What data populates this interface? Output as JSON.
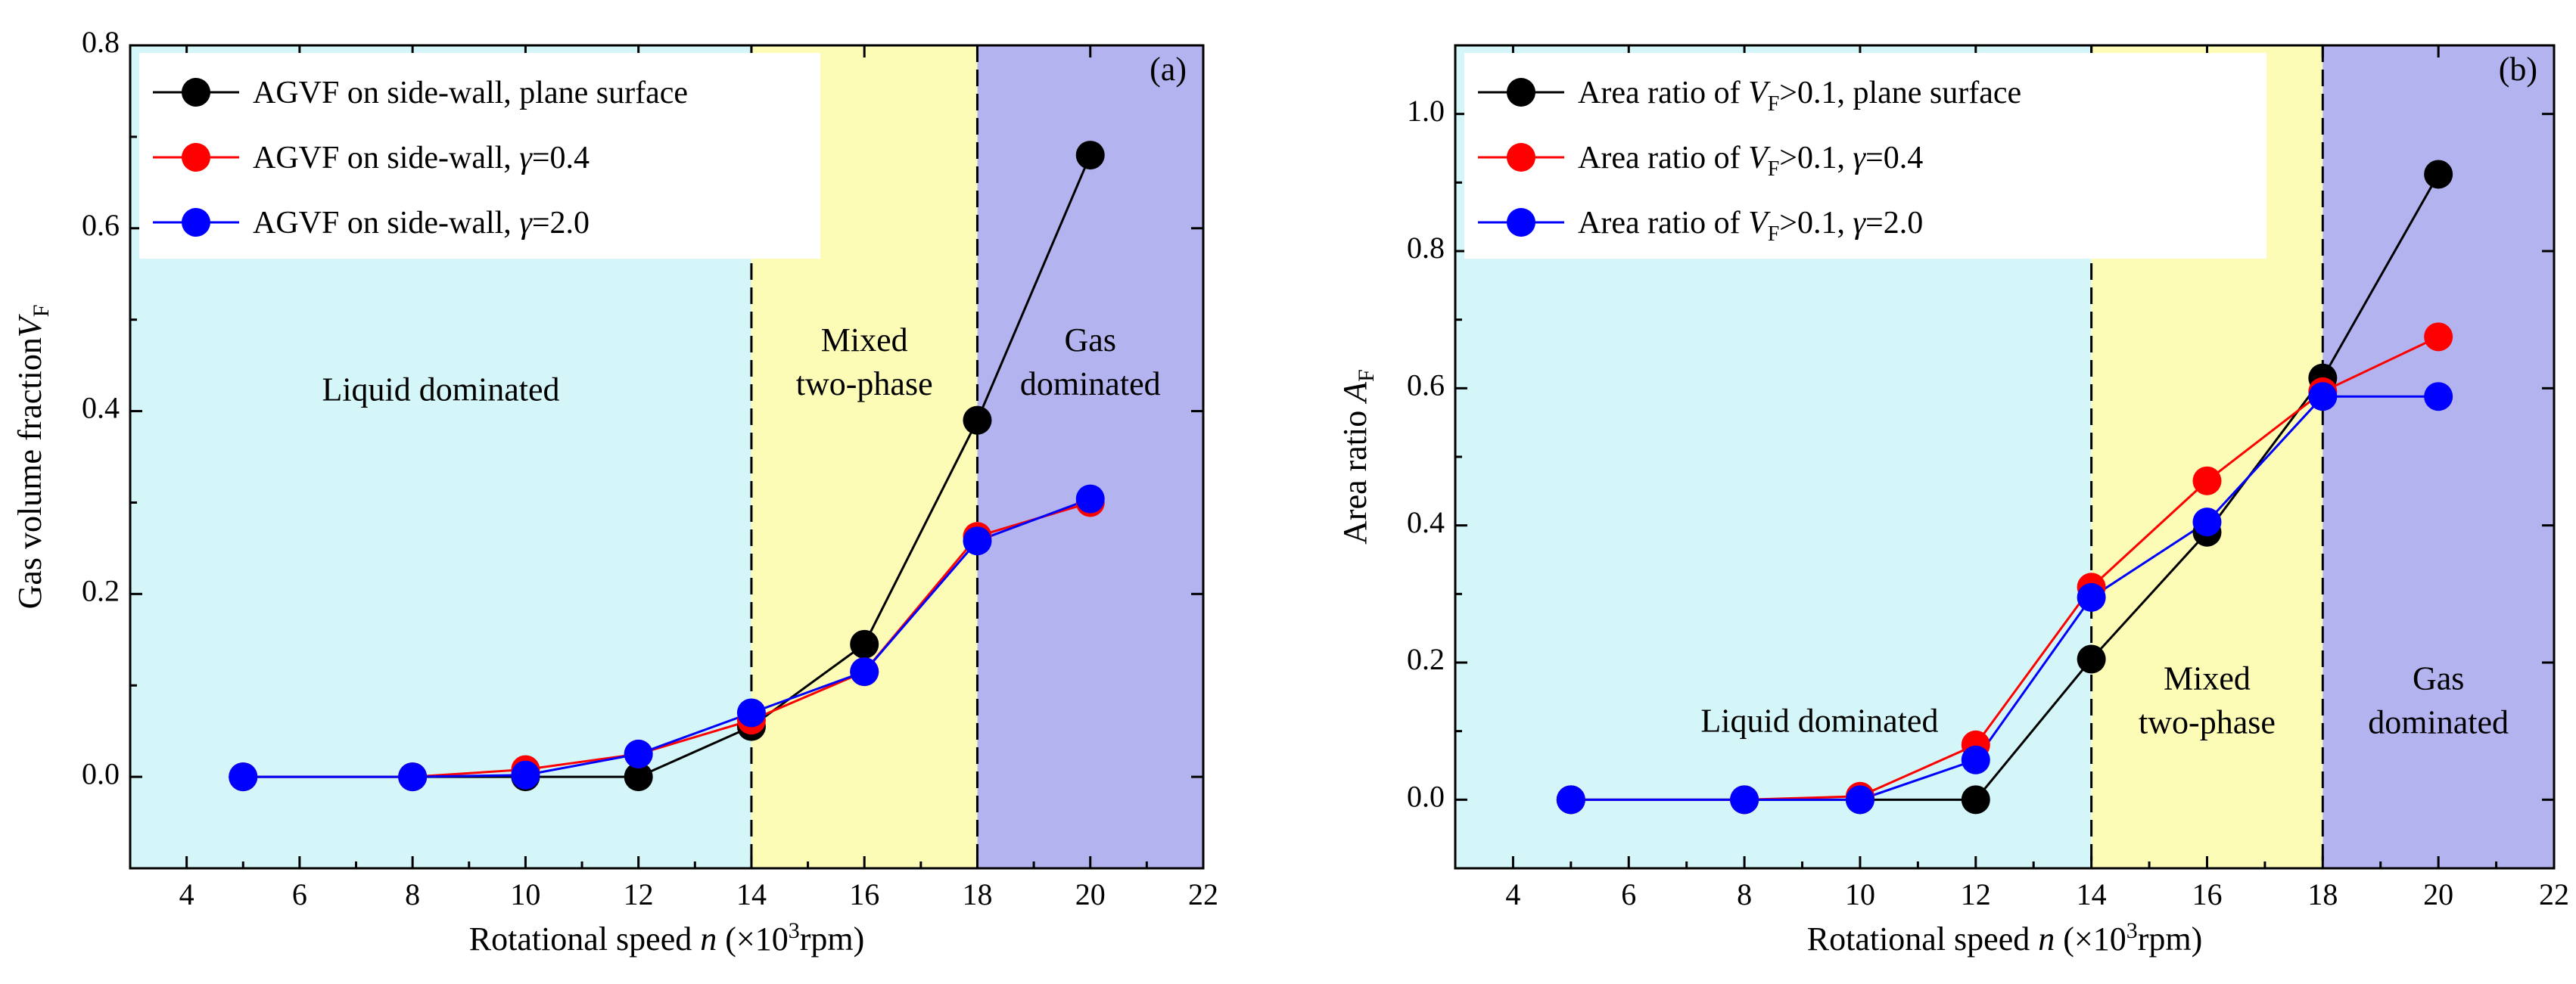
{
  "chart_data": [
    {
      "type": "line",
      "panel": "(a)",
      "xlabel": "Rotational speed",
      "xlabel_var": "n",
      "xlabel_unit_pre": " (×10",
      "xlabel_unit_sup": "3",
      "xlabel_unit_post": "rpm)",
      "ylabel": "Gas volume fraction",
      "ylabel_var": "V",
      "ylabel_sub": "F",
      "xlim": [
        3,
        22
      ],
      "ylim": [
        -0.1,
        0.8
      ],
      "xticks": [
        4,
        6,
        8,
        10,
        12,
        14,
        16,
        18,
        20,
        22
      ],
      "yticks": [
        0.0,
        0.2,
        0.4,
        0.6,
        0.8
      ],
      "ytick_labels": [
        "0.0",
        "0.2",
        "0.4",
        "0.6",
        "0.8"
      ],
      "regions": [
        {
          "from": 3,
          "to": 14,
          "color": "#d4f6f8",
          "label": [
            "Liquid dominated"
          ],
          "label_x": 8.5,
          "label_y": 0.42
        },
        {
          "from": 14,
          "to": 18,
          "color": "#fcfcb6",
          "label": [
            "Mixed",
            "two-phase"
          ],
          "label_x": 16.0,
          "label_y": 0.45
        },
        {
          "from": 18,
          "to": 22,
          "color": "#b3b3ef",
          "label": [
            "Gas",
            "dominated"
          ],
          "label_x": 20.0,
          "label_y": 0.45
        }
      ],
      "dividers": [
        14,
        18
      ],
      "legend_position": "top-left",
      "series": [
        {
          "name": "AGVF on side-wall, plane surface",
          "parts": [
            {
              "t": "AGVF on side-wall, plane surface"
            }
          ],
          "color": "#000000",
          "x": [
            5,
            8,
            10,
            12,
            14,
            16,
            18,
            20
          ],
          "values": [
            0.0,
            0.0,
            0.0,
            0.0,
            0.055,
            0.145,
            0.39,
            0.68
          ]
        },
        {
          "name": "AGVF on side-wall, γ=0.4",
          "parts": [
            {
              "t": "AGVF on side-wall, "
            },
            {
              "t": "γ",
              "i": true
            },
            {
              "t": "=0.4"
            }
          ],
          "color": "#ff0000",
          "x": [
            5,
            8,
            10,
            12,
            14,
            16,
            18,
            20
          ],
          "values": [
            0.0,
            0.0,
            0.008,
            0.025,
            0.062,
            0.115,
            0.263,
            0.3
          ]
        },
        {
          "name": "AGVF on side-wall, γ=2.0",
          "parts": [
            {
              "t": "AGVF on side-wall, "
            },
            {
              "t": "γ",
              "i": true
            },
            {
              "t": "=2.0"
            }
          ],
          "color": "#0000ff",
          "x": [
            5,
            8,
            10,
            12,
            14,
            16,
            18,
            20
          ],
          "values": [
            0.0,
            0.0,
            0.002,
            0.025,
            0.07,
            0.115,
            0.258,
            0.304
          ]
        }
      ]
    },
    {
      "type": "line",
      "panel": "(b)",
      "xlabel": "Rotational speed",
      "xlabel_var": "n",
      "xlabel_unit_pre": " (×10",
      "xlabel_unit_sup": "3",
      "xlabel_unit_post": "rpm)",
      "ylabel": "Area ratio",
      "ylabel_var": "A",
      "ylabel_sub": "F",
      "xlim": [
        3,
        22
      ],
      "ylim": [
        -0.1,
        1.1
      ],
      "xticks": [
        4,
        6,
        8,
        10,
        12,
        14,
        16,
        18,
        20,
        22
      ],
      "yticks": [
        0.0,
        0.2,
        0.4,
        0.6,
        0.8,
        1.0
      ],
      "ytick_labels": [
        "0.0",
        "0.2",
        "0.4",
        "0.6",
        "0.8",
        "1.0"
      ],
      "regions": [
        {
          "from": 3,
          "to": 14,
          "color": "#d4f6f8",
          "label": [
            "Liquid dominated"
          ],
          "label_x": 9.3,
          "label_y": 0.11
        },
        {
          "from": 14,
          "to": 18,
          "color": "#fcfcb6",
          "label": [
            "Mixed",
            "two-phase"
          ],
          "label_x": 16.0,
          "label_y": 0.14
        },
        {
          "from": 18,
          "to": 22,
          "color": "#b3b3ef",
          "label": [
            "Gas",
            "dominated"
          ],
          "label_x": 20.0,
          "label_y": 0.14
        }
      ],
      "dividers": [
        14,
        18
      ],
      "legend_position": "top-left",
      "series": [
        {
          "name": "Area ratio of VF>0.1, plane surface",
          "parts": [
            {
              "t": "Area ratio of "
            },
            {
              "t": "V",
              "i": true
            },
            {
              "t": "F",
              "sub": true
            },
            {
              "t": ">0.1, plane surface"
            }
          ],
          "color": "#000000",
          "x": [
            5,
            8,
            10,
            12,
            14,
            16,
            18,
            20
          ],
          "values": [
            0.0,
            0.0,
            0.0,
            0.0,
            0.205,
            0.39,
            0.615,
            0.912
          ]
        },
        {
          "name": "Area ratio of VF>0.1, γ=0.4",
          "parts": [
            {
              "t": "Area ratio of "
            },
            {
              "t": "V",
              "i": true
            },
            {
              "t": "F",
              "sub": true
            },
            {
              "t": ">0.1, "
            },
            {
              "t": "γ",
              "i": true
            },
            {
              "t": "=0.4"
            }
          ],
          "color": "#ff0000",
          "x": [
            5,
            8,
            10,
            12,
            14,
            16,
            18,
            20
          ],
          "values": [
            0.0,
            0.0,
            0.005,
            0.08,
            0.31,
            0.465,
            0.595,
            0.675
          ]
        },
        {
          "name": "Area ratio of VF>0.1, γ=2.0",
          "parts": [
            {
              "t": "Area ratio of "
            },
            {
              "t": "V",
              "i": true
            },
            {
              "t": "F",
              "sub": true
            },
            {
              "t": ">0.1, "
            },
            {
              "t": "γ",
              "i": true
            },
            {
              "t": "=2.0"
            }
          ],
          "color": "#0000ff",
          "x": [
            5,
            8,
            10,
            12,
            14,
            16,
            18,
            20
          ],
          "values": [
            0.0,
            0.0,
            0.0,
            0.058,
            0.295,
            0.405,
            0.588,
            0.588
          ]
        }
      ]
    }
  ]
}
